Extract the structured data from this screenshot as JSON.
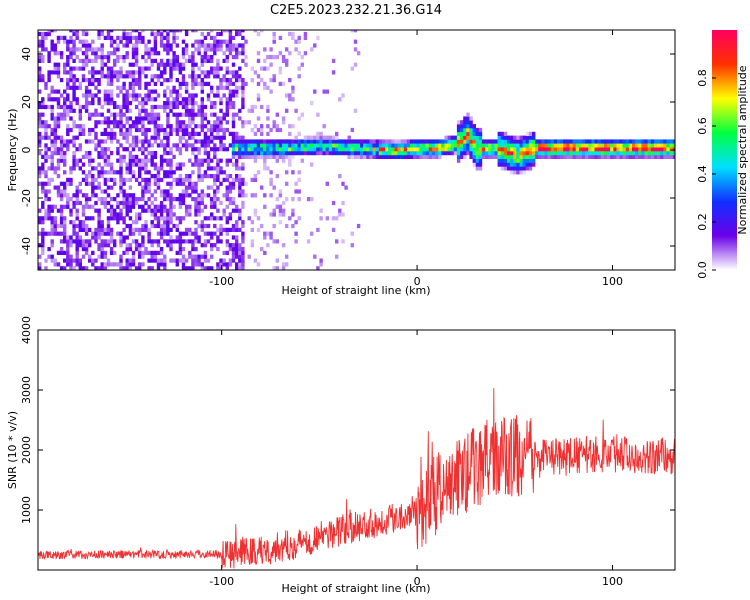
{
  "title": "C2E5.2023.232.21.36.G14",
  "chart_data": [
    {
      "type": "heatmap",
      "title": "C2E5.2023.232.21.36.G14",
      "xlabel": "Height of straight line (km)",
      "ylabel": "Frequency (Hz)",
      "xlim": [
        -194,
        132
      ],
      "ylim": [
        -50,
        50
      ],
      "xticks": [
        -100,
        0,
        100
      ],
      "yticks": [
        -40,
        -20,
        0,
        20,
        40
      ],
      "colorbar": {
        "label": "Normalized spectral amplitude",
        "range": [
          0,
          1
        ],
        "ticks": [
          "0.0",
          "0.2",
          "0.4",
          "0.6",
          "0.8"
        ],
        "colors": [
          "#ffffff",
          "#6a00e8",
          "#1030ff",
          "#00e0ff",
          "#00ff40",
          "#ffff00",
          "#ff3000",
          "#ff0060"
        ]
      },
      "ridge": {
        "x": [
          -90,
          -70,
          -50,
          -30,
          -10,
          0,
          10,
          20,
          25,
          30,
          40,
          50,
          55,
          60,
          80,
          100,
          130
        ],
        "frequency": [
          0,
          0,
          1,
          0,
          -1,
          0,
          0,
          2,
          6,
          0,
          0,
          -3,
          -2,
          0,
          0,
          0,
          0
        ]
      }
    },
    {
      "type": "line",
      "xlabel": "Height of straight line (km)",
      "ylabel": "SNR (10 * v/v)",
      "xlim": [
        -194,
        132
      ],
      "ylim": [
        0,
        4000
      ],
      "xticks": [
        -100,
        0,
        100
      ],
      "yticks": [
        1000,
        2000,
        3000,
        4000
      ],
      "color": "#f03030",
      "series": [
        {
          "x": [
            -194,
            -150,
            -100,
            -80,
            -60,
            -40,
            -20,
            0,
            10,
            20,
            30,
            40,
            50,
            60,
            80,
            100,
            120,
            132
          ],
          "values": [
            250,
            260,
            270,
            320,
            450,
            650,
            800,
            1000,
            1250,
            1500,
            1750,
            1850,
            1900,
            1850,
            1900,
            1950,
            1900,
            1900
          ]
        }
      ]
    }
  ]
}
